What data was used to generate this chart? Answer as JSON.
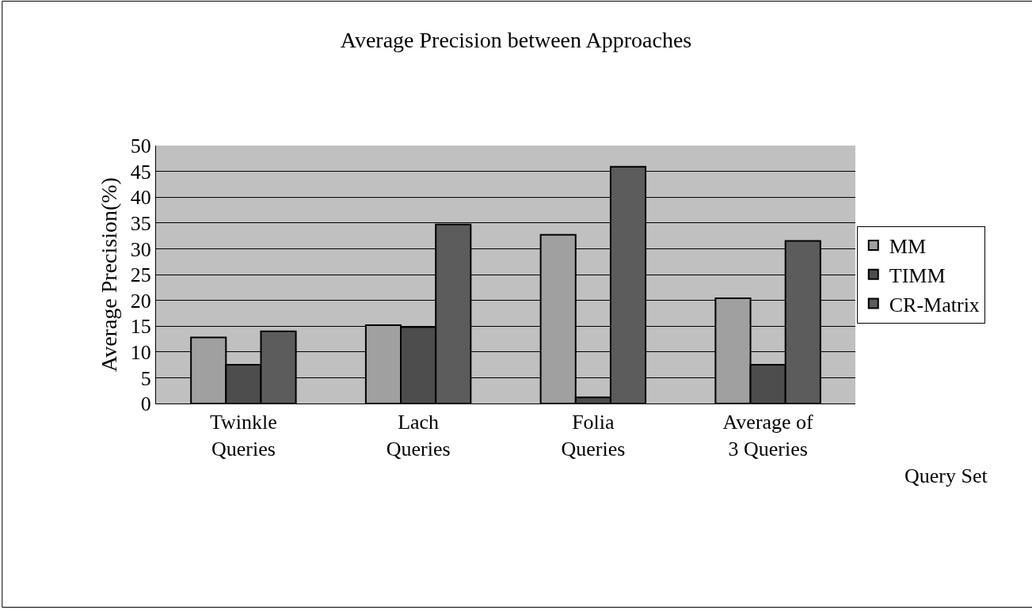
{
  "chart_data": {
    "type": "bar",
    "title": "Average Precision between Approaches",
    "xlabel": "Query Set",
    "ylabel": "Average Precision(%)",
    "categories": [
      "Twinkle\nQueries",
      "Lach\nQueries",
      "Folia\nQueries",
      "Average of\n3 Queries"
    ],
    "series": [
      {
        "name": "MM",
        "color": "#a0a0a0",
        "values": [
          12.8,
          15.2,
          32.7,
          20.4
        ]
      },
      {
        "name": "TIMM",
        "color": "#4d4d4d",
        "values": [
          7.5,
          14.8,
          1.2,
          7.5
        ]
      },
      {
        "name": "CR-Matrix",
        "color": "#5c5c5c",
        "values": [
          14,
          34.7,
          45.9,
          31.5
        ]
      }
    ],
    "ylim": [
      0,
      50
    ],
    "yticks": [
      0,
      5,
      10,
      15,
      20,
      25,
      30,
      35,
      40,
      45,
      50
    ],
    "grid": "y",
    "legend": "right"
  }
}
